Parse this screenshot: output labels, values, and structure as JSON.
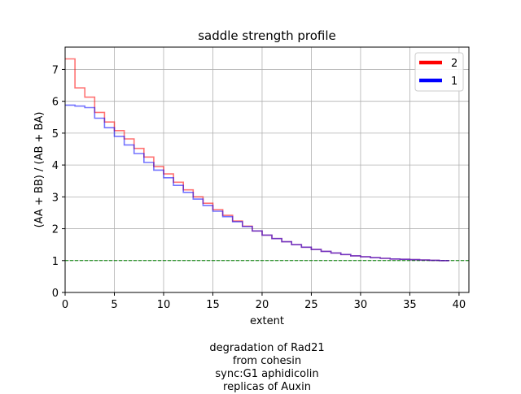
{
  "chart_data": {
    "type": "line",
    "title": "saddle strength profile",
    "xlabel": "extent",
    "ylabel": "(AA + BB) / (AB + BA)",
    "xlim": [
      0,
      41
    ],
    "ylim": [
      0,
      7.7
    ],
    "xticks": [
      "0",
      "5",
      "10",
      "15",
      "20",
      "25",
      "30",
      "35",
      "40"
    ],
    "yticks": [
      "0",
      "1",
      "2",
      "3",
      "4",
      "5",
      "6",
      "7"
    ],
    "grid": true,
    "legend_position": "top-right",
    "reference_line": {
      "y": 1,
      "color": "#008000",
      "style": "dashed"
    },
    "series": [
      {
        "name": "2",
        "color": "#ff0000",
        "steps": [
          {
            "x0": 0,
            "x1": 1,
            "y": 7.33
          },
          {
            "x0": 1,
            "x1": 2,
            "y": 6.42
          },
          {
            "x0": 2,
            "x1": 3,
            "y": 6.13
          },
          {
            "x0": 3,
            "x1": 4,
            "y": 5.65
          },
          {
            "x0": 4,
            "x1": 5,
            "y": 5.35
          },
          {
            "x0": 5,
            "x1": 6,
            "y": 5.08
          },
          {
            "x0": 6,
            "x1": 7,
            "y": 4.82
          },
          {
            "x0": 7,
            "x1": 8,
            "y": 4.52
          },
          {
            "x0": 8,
            "x1": 9,
            "y": 4.25
          },
          {
            "x0": 9,
            "x1": 10,
            "y": 3.95
          },
          {
            "x0": 10,
            "x1": 11,
            "y": 3.72
          },
          {
            "x0": 11,
            "x1": 12,
            "y": 3.46
          },
          {
            "x0": 12,
            "x1": 13,
            "y": 3.22
          },
          {
            "x0": 13,
            "x1": 14,
            "y": 3.0
          },
          {
            "x0": 14,
            "x1": 15,
            "y": 2.8
          },
          {
            "x0": 15,
            "x1": 16,
            "y": 2.6
          },
          {
            "x0": 16,
            "x1": 17,
            "y": 2.42
          },
          {
            "x0": 17,
            "x1": 18,
            "y": 2.24
          },
          {
            "x0": 18,
            "x1": 19,
            "y": 2.08
          },
          {
            "x0": 19,
            "x1": 20,
            "y": 1.93
          },
          {
            "x0": 20,
            "x1": 21,
            "y": 1.8
          },
          {
            "x0": 21,
            "x1": 22,
            "y": 1.69
          },
          {
            "x0": 22,
            "x1": 23,
            "y": 1.59
          },
          {
            "x0": 23,
            "x1": 24,
            "y": 1.5
          },
          {
            "x0": 24,
            "x1": 25,
            "y": 1.42
          },
          {
            "x0": 25,
            "x1": 26,
            "y": 1.35
          },
          {
            "x0": 26,
            "x1": 27,
            "y": 1.29
          },
          {
            "x0": 27,
            "x1": 28,
            "y": 1.24
          },
          {
            "x0": 28,
            "x1": 29,
            "y": 1.19
          },
          {
            "x0": 29,
            "x1": 30,
            "y": 1.15
          },
          {
            "x0": 30,
            "x1": 31,
            "y": 1.12
          },
          {
            "x0": 31,
            "x1": 32,
            "y": 1.09
          },
          {
            "x0": 32,
            "x1": 33,
            "y": 1.07
          },
          {
            "x0": 33,
            "x1": 34,
            "y": 1.05
          },
          {
            "x0": 34,
            "x1": 35,
            "y": 1.04
          },
          {
            "x0": 35,
            "x1": 36,
            "y": 1.03
          },
          {
            "x0": 36,
            "x1": 37,
            "y": 1.02
          },
          {
            "x0": 37,
            "x1": 38,
            "y": 1.01
          },
          {
            "x0": 38,
            "x1": 39,
            "y": 1.0
          }
        ]
      },
      {
        "name": "1",
        "color": "#0000ff",
        "steps": [
          {
            "x0": 0,
            "x1": 1,
            "y": 5.88
          },
          {
            "x0": 1,
            "x1": 2,
            "y": 5.85
          },
          {
            "x0": 2,
            "x1": 3,
            "y": 5.8
          },
          {
            "x0": 3,
            "x1": 4,
            "y": 5.47
          },
          {
            "x0": 4,
            "x1": 5,
            "y": 5.17
          },
          {
            "x0": 5,
            "x1": 6,
            "y": 4.9
          },
          {
            "x0": 6,
            "x1": 7,
            "y": 4.63
          },
          {
            "x0": 7,
            "x1": 8,
            "y": 4.36
          },
          {
            "x0": 8,
            "x1": 9,
            "y": 4.08
          },
          {
            "x0": 9,
            "x1": 10,
            "y": 3.84
          },
          {
            "x0": 10,
            "x1": 11,
            "y": 3.6
          },
          {
            "x0": 11,
            "x1": 12,
            "y": 3.36
          },
          {
            "x0": 12,
            "x1": 13,
            "y": 3.14
          },
          {
            "x0": 13,
            "x1": 14,
            "y": 2.93
          },
          {
            "x0": 14,
            "x1": 15,
            "y": 2.73
          },
          {
            "x0": 15,
            "x1": 16,
            "y": 2.55
          },
          {
            "x0": 16,
            "x1": 17,
            "y": 2.38
          },
          {
            "x0": 17,
            "x1": 18,
            "y": 2.22
          },
          {
            "x0": 18,
            "x1": 19,
            "y": 2.07
          },
          {
            "x0": 19,
            "x1": 20,
            "y": 1.93
          },
          {
            "x0": 20,
            "x1": 21,
            "y": 1.8
          },
          {
            "x0": 21,
            "x1": 22,
            "y": 1.69
          },
          {
            "x0": 22,
            "x1": 23,
            "y": 1.59
          },
          {
            "x0": 23,
            "x1": 24,
            "y": 1.5
          },
          {
            "x0": 24,
            "x1": 25,
            "y": 1.42
          },
          {
            "x0": 25,
            "x1": 26,
            "y": 1.35
          },
          {
            "x0": 26,
            "x1": 27,
            "y": 1.29
          },
          {
            "x0": 27,
            "x1": 28,
            "y": 1.24
          },
          {
            "x0": 28,
            "x1": 29,
            "y": 1.19
          },
          {
            "x0": 29,
            "x1": 30,
            "y": 1.15
          },
          {
            "x0": 30,
            "x1": 31,
            "y": 1.12
          },
          {
            "x0": 31,
            "x1": 32,
            "y": 1.09
          },
          {
            "x0": 32,
            "x1": 33,
            "y": 1.07
          },
          {
            "x0": 33,
            "x1": 34,
            "y": 1.05
          },
          {
            "x0": 34,
            "x1": 35,
            "y": 1.04
          },
          {
            "x0": 35,
            "x1": 36,
            "y": 1.03
          },
          {
            "x0": 36,
            "x1": 37,
            "y": 1.02
          },
          {
            "x0": 37,
            "x1": 38,
            "y": 1.01
          },
          {
            "x0": 38,
            "x1": 39,
            "y": 1.0
          }
        ]
      }
    ]
  },
  "caption": {
    "line1": "degradation of Rad21",
    "line2": "from cohesin",
    "line3": "sync:G1 aphidicolin",
    "line4": "replicas of Auxin"
  }
}
